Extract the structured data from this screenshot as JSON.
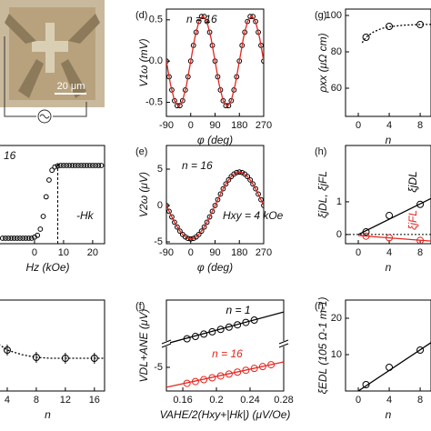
{
  "micrograph": {
    "scale_bar": "20 μm"
  },
  "chart_data": [
    {
      "type": "scatter",
      "panel_label": "(d)",
      "xlabel": "φ (deg)",
      "ylabel": "V1ω (mV)",
      "xlim": [
        -90,
        270
      ],
      "ylim": [
        -0.67,
        0.63
      ],
      "xticks": [
        -90,
        0,
        90,
        180,
        270
      ],
      "yticks": [
        0.5,
        {
          "value": 0,
          "label": "0.0"
        },
        -0.5
      ],
      "annotations": [
        {
          "text": "n = 16"
        }
      ],
      "series": [
        {
          "color": "#000000",
          "marker": "circle",
          "x": [
            -90,
            -80,
            -70,
            -60,
            -50,
            -40,
            -30,
            -20,
            -10,
            0,
            10,
            20,
            30,
            40,
            50,
            60,
            70,
            80,
            90,
            100,
            110,
            120,
            130,
            140,
            150,
            160,
            170,
            180,
            190,
            200,
            210,
            220,
            230,
            240,
            250,
            260,
            270
          ],
          "values": [
            0,
            -0.19,
            -0.35,
            -0.48,
            -0.54,
            -0.54,
            -0.48,
            -0.35,
            -0.19,
            0,
            0.19,
            0.35,
            0.48,
            0.54,
            0.54,
            0.48,
            0.35,
            0.19,
            0,
            -0.19,
            -0.35,
            -0.48,
            -0.54,
            -0.54,
            -0.48,
            -0.35,
            -0.19,
            0,
            0.19,
            0.35,
            0.48,
            0.54,
            0.54,
            0.48,
            0.35,
            0.19,
            0
          ]
        },
        {
          "color": "#e3261f",
          "marker": "line",
          "x": [
            -90,
            -75,
            -60,
            -45,
            -30,
            -15,
            0,
            15,
            30,
            45,
            60,
            75,
            90,
            105,
            120,
            135,
            150,
            165,
            180,
            195,
            210,
            225,
            240,
            255,
            270
          ],
          "values": [
            0,
            -0.28,
            -0.48,
            -0.55,
            -0.48,
            -0.28,
            0,
            0.28,
            0.48,
            0.55,
            0.48,
            0.28,
            0,
            -0.28,
            -0.48,
            -0.55,
            -0.48,
            -0.28,
            0,
            0.28,
            0.48,
            0.55,
            0.48,
            0.28,
            0
          ]
        }
      ]
    },
    {
      "type": "scatter",
      "panel_label": "(g)",
      "xlabel": "n",
      "ylabel": "ρxx (μΩ cm)",
      "xlim": [
        -1.65,
        9.4
      ],
      "ylim": [
        44.5,
        103.5
      ],
      "xticks": [
        0,
        4,
        8
      ],
      "yticks": [
        100,
        80,
        60
      ],
      "series": [
        {
          "color": "#000000",
          "marker": "line",
          "dash": "dotted",
          "x": [
            0.5,
            1,
            2,
            3,
            4,
            6,
            8,
            9.4
          ],
          "values": [
            85,
            88,
            91,
            92.8,
            93.8,
            94.7,
            95,
            95.1
          ]
        },
        {
          "color": "#000000",
          "marker": "circle",
          "x": [
            1,
            4,
            8
          ],
          "values": [
            88,
            94,
            95
          ]
        }
      ]
    },
    {
      "type": "scatter",
      "xlabel": "Hz (kOe)",
      "xlim": [
        -15,
        24.1
      ],
      "ylim": [
        -1.15,
        1.55
      ],
      "xticks": [
        0,
        10,
        20
      ],
      "annotations": [
        {
          "text": "16"
        },
        {
          "text": "-Hk",
          "x": 8
        }
      ],
      "series": [
        {
          "color": "#000000",
          "marker": "circle",
          "x": [
            -11,
            -10,
            -9,
            -8,
            -7,
            -6,
            -5,
            -4,
            -3,
            -2,
            -1,
            0,
            1,
            2,
            3,
            4,
            5,
            6,
            7,
            8,
            9,
            10,
            11,
            12,
            13,
            14,
            15,
            16,
            17,
            18,
            19,
            20,
            21,
            22,
            23
          ],
          "values": [
            -1,
            -1,
            -1,
            -1,
            -1,
            -1,
            -1,
            -1,
            -1,
            -1,
            -1,
            -0.97,
            -0.92,
            -0.75,
            -0.4,
            0.14,
            0.6,
            0.87,
            0.96,
            0.99,
            1,
            1,
            1,
            1,
            1,
            1,
            1,
            1,
            1,
            1,
            1,
            1,
            1,
            1,
            1
          ]
        }
      ]
    },
    {
      "type": "scatter",
      "panel_label": "(e)",
      "xlabel": "φ (deg)",
      "ylabel": "V2ω (μV)",
      "xlim": [
        -90,
        270
      ],
      "ylim": [
        -5.25,
        8.25
      ],
      "xticks": [
        -90,
        0,
        90,
        180,
        270
      ],
      "yticks": [
        5,
        0,
        -5
      ],
      "annotations": [
        {
          "text": "n = 16"
        },
        {
          "text": "Hxy = 4 kOe"
        }
      ],
      "series": [
        {
          "color": "#000000",
          "marker": "circle",
          "x": [
            -90,
            -80,
            -70,
            -60,
            -50,
            -40,
            -30,
            -20,
            -10,
            0,
            10,
            20,
            30,
            40,
            50,
            60,
            70,
            80,
            90,
            100,
            110,
            120,
            130,
            140,
            150,
            160,
            170,
            180,
            190,
            200,
            210,
            220,
            230,
            240,
            250,
            260,
            270
          ],
          "values": [
            0,
            -0.8,
            -1.57,
            -2.3,
            -2.96,
            -3.52,
            -3.98,
            -4.32,
            -4.53,
            -4.6,
            -4.53,
            -4.32,
            -3.98,
            -3.52,
            -2.96,
            -2.3,
            -1.57,
            -0.8,
            0,
            0.8,
            1.57,
            2.3,
            2.96,
            3.52,
            3.98,
            4.32,
            4.53,
            4.6,
            4.53,
            4.32,
            3.98,
            3.52,
            2.96,
            2.3,
            1.57,
            0.8,
            0
          ]
        },
        {
          "color": "#e3261f",
          "marker": "line",
          "x": [
            -90,
            -75,
            -60,
            -45,
            -30,
            -15,
            0,
            15,
            30,
            45,
            60,
            75,
            90,
            105,
            120,
            135,
            150,
            165,
            180,
            195,
            210,
            225,
            240,
            255,
            270
          ],
          "values": [
            0,
            -1.19,
            -2.3,
            -3.25,
            -3.98,
            -4.44,
            -4.6,
            -4.44,
            -3.98,
            -3.25,
            -2.3,
            -1.19,
            0,
            1.19,
            2.3,
            3.25,
            3.98,
            4.44,
            4.6,
            4.44,
            3.98,
            3.25,
            2.3,
            1.19,
            0
          ]
        }
      ]
    },
    {
      "type": "scatter",
      "panel_label": "(h)",
      "xlabel": "n",
      "ylabel": "ξjDL, ξjFL",
      "xlim": [
        -1.65,
        9.4
      ],
      "ylim": [
        -0.28,
        2.72
      ],
      "xticks": [
        0,
        4,
        8
      ],
      "yticks": [
        1,
        0
      ],
      "reference_line": 0,
      "series": [
        {
          "color": "#000000",
          "marker": "line",
          "x": [
            0,
            9.4
          ],
          "values": [
            0,
            1.1
          ]
        },
        {
          "color": "#e3261f",
          "marker": "line",
          "x": [
            0,
            9.4
          ],
          "values": [
            -0.03,
            -0.2
          ]
        },
        {
          "name": "ξjDL",
          "color": "#000000",
          "marker": "circle",
          "x": [
            1,
            4,
            8
          ],
          "values": [
            0.08,
            0.58,
            0.92
          ]
        },
        {
          "name": "ξjFL",
          "color": "#e3261f",
          "marker": "circle",
          "x": [
            1,
            4,
            8
          ],
          "values": [
            -0.05,
            -0.1,
            -0.18
          ]
        }
      ]
    },
    {
      "type": "scatter",
      "xlabel": "n",
      "xlim": [
        1.75,
        17.4
      ],
      "ylim": [
        0,
        10
      ],
      "xticks": [
        4,
        8,
        12,
        16
      ],
      "series": [
        {
          "color": "#000000",
          "marker": "line",
          "dash": "dotted",
          "x": [
            2,
            4,
            6,
            8,
            10,
            12,
            14,
            16,
            17.4
          ],
          "values": [
            5.6,
            4.5,
            4.0,
            3.7,
            3.6,
            3.6,
            3.6,
            3.6,
            3.6
          ]
        },
        {
          "color": "#000000",
          "marker": "circle",
          "x": [
            4,
            8,
            12,
            16
          ],
          "values": [
            4.5,
            3.7,
            3.6,
            3.6
          ],
          "errors": [
            0.6,
            0.6,
            0.6,
            0.6
          ]
        }
      ]
    },
    {
      "type": "scatter",
      "panel_label": "(f)",
      "xlabel": "VAHE/2(Hxy+|Hk|) (μV/Oe)",
      "ylabel": "VDL+ANE (μV)",
      "xlim": [
        0.1405,
        0.28
      ],
      "ylim": [
        -7.17,
        1.17
      ],
      "xticks": [
        0.16,
        0.2,
        0.24,
        0.28
      ],
      "yticks": [
        -5
      ],
      "series": [
        {
          "color": "#000000",
          "marker": "line",
          "x": [
            0.1405,
            0.28
          ],
          "values": [
            -2.83,
            0.08
          ]
        },
        {
          "name": "n = 1",
          "color": "#000000",
          "marker": "circle",
          "x": [
            0.165,
            0.175,
            0.185,
            0.195,
            0.205,
            0.215,
            0.225,
            0.235,
            0.245
          ],
          "values": [
            -2.38,
            -2.17,
            -1.95,
            -1.74,
            -1.52,
            -1.31,
            -1.1,
            -0.88,
            -0.67
          ]
        },
        {
          "color": "#e3261f",
          "marker": "line",
          "x": [
            0.1405,
            0.28
          ],
          "values": [
            -6.83,
            -4.5
          ]
        },
        {
          "name": "n = 16",
          "color": "#e3261f",
          "marker": "circle",
          "x": [
            0.165,
            0.175,
            0.185,
            0.195,
            0.205,
            0.215,
            0.225,
            0.235,
            0.245,
            0.255,
            0.265
          ],
          "values": [
            -6.47,
            -6.3,
            -6.13,
            -5.96,
            -5.79,
            -5.62,
            -5.44,
            -5.27,
            -5.1,
            -4.93,
            -4.76
          ]
        }
      ]
    },
    {
      "type": "scatter",
      "panel_label": "(i)",
      "xlabel": "n",
      "ylabel": "ξEDL (105 Ω-1 m-1)",
      "xlim": [
        -1.65,
        9.4
      ],
      "ylim": [
        0,
        25
      ],
      "xticks": [
        0,
        4,
        8
      ],
      "yticks": [
        10,
        20
      ],
      "series": [
        {
          "color": "#000000",
          "marker": "line",
          "x": [
            0,
            9.4
          ],
          "values": [
            0,
            13.3
          ]
        },
        {
          "color": "#000000",
          "marker": "circle",
          "x": [
            1,
            4,
            8
          ],
          "values": [
            1.75,
            6.5,
            11.25
          ]
        }
      ]
    }
  ]
}
